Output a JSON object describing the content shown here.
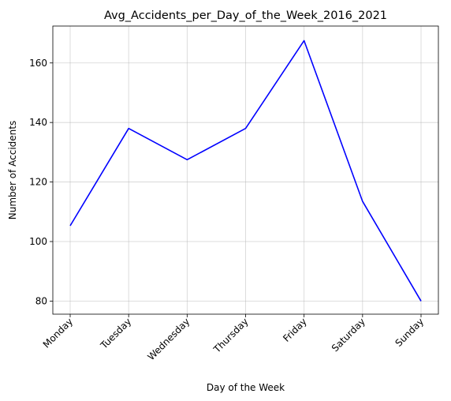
{
  "chart_data": {
    "type": "line",
    "title": "Avg_Accidents_per_Day_of_the_Week_2016_2021",
    "xlabel": "Day of the Week",
    "ylabel": "Number of Accidents",
    "categories": [
      "Monday",
      "Tuesday",
      "Wednesday",
      "Thursday",
      "Friday",
      "Saturday",
      "Sunday"
    ],
    "series": [
      {
        "values": [
          105.3,
          138.0,
          127.5,
          138.0,
          167.5,
          113.5,
          80.0
        ],
        "color": "#0000ff"
      }
    ],
    "yticks": [
      80,
      100,
      120,
      140,
      160
    ],
    "ylim": [
      75.6,
      172.4
    ],
    "grid": true,
    "xtick_rotation": 45
  }
}
